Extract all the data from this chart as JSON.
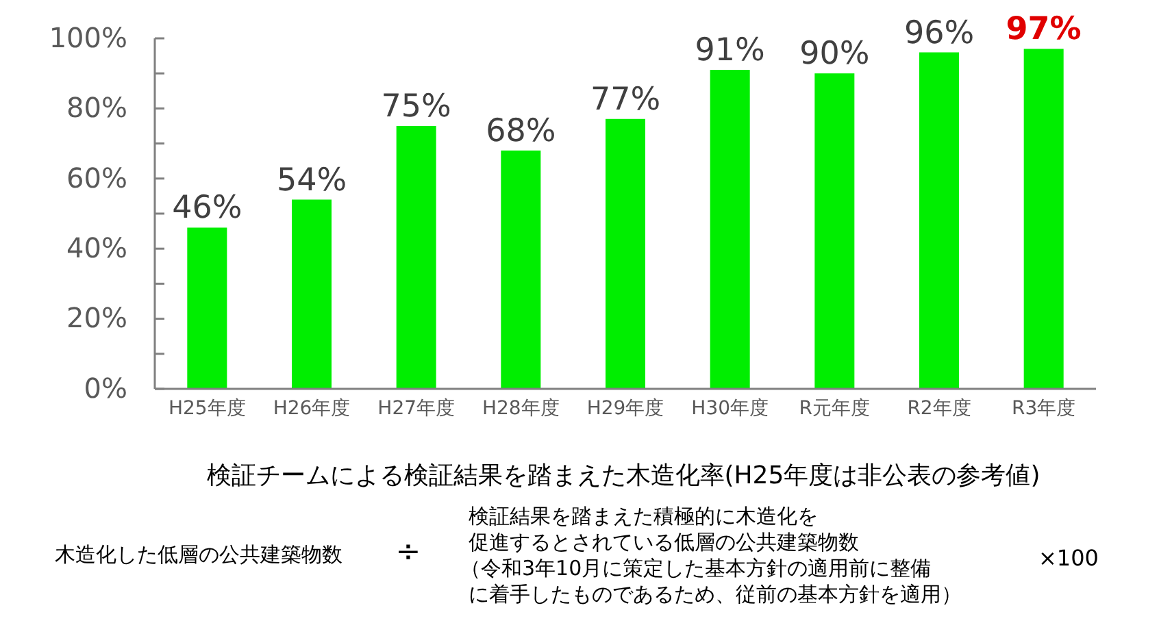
{
  "chart_data": {
    "type": "bar",
    "title": "検証チームによる検証結果を踏まえた木造化率(H25年度は非公表の参考値)",
    "categories": [
      "H25年度",
      "H26年度",
      "H27年度",
      "H28年度",
      "H29年度",
      "H30年度",
      "R元年度",
      "R2年度",
      "R3年度"
    ],
    "values": [
      46,
      54,
      75,
      68,
      77,
      91,
      90,
      96,
      97
    ],
    "value_labels": [
      "46%",
      "54%",
      "75%",
      "68%",
      "77%",
      "91%",
      "90%",
      "96%",
      "97%"
    ],
    "color": "#00ee00",
    "ylim": [
      0,
      100
    ],
    "yticks": [
      {
        "value": 0,
        "label": "0%"
      },
      {
        "value": 10,
        "label": null
      },
      {
        "value": 20,
        "label": "20%"
      },
      {
        "value": 30,
        "label": null
      },
      {
        "value": 40,
        "label": "40%"
      },
      {
        "value": 50,
        "label": null
      },
      {
        "value": 60,
        "label": "60%"
      },
      {
        "value": 70,
        "label": null
      },
      {
        "value": 80,
        "label": "80%"
      },
      {
        "value": 90,
        "label": null
      },
      {
        "value": 100,
        "label": "100%"
      }
    ],
    "grid": false,
    "annotations": [
      "木造化した低層の公共建築物数",
      "÷",
      "検証結果を踏まえた積極的に木造化を",
      "促進するとされている低層の公共建築物数",
      "（令和3年10月に策定した基本方針の適用前に整備",
      "に着手したものであるため、従前の基本方針を適用）",
      "×100"
    ]
  }
}
